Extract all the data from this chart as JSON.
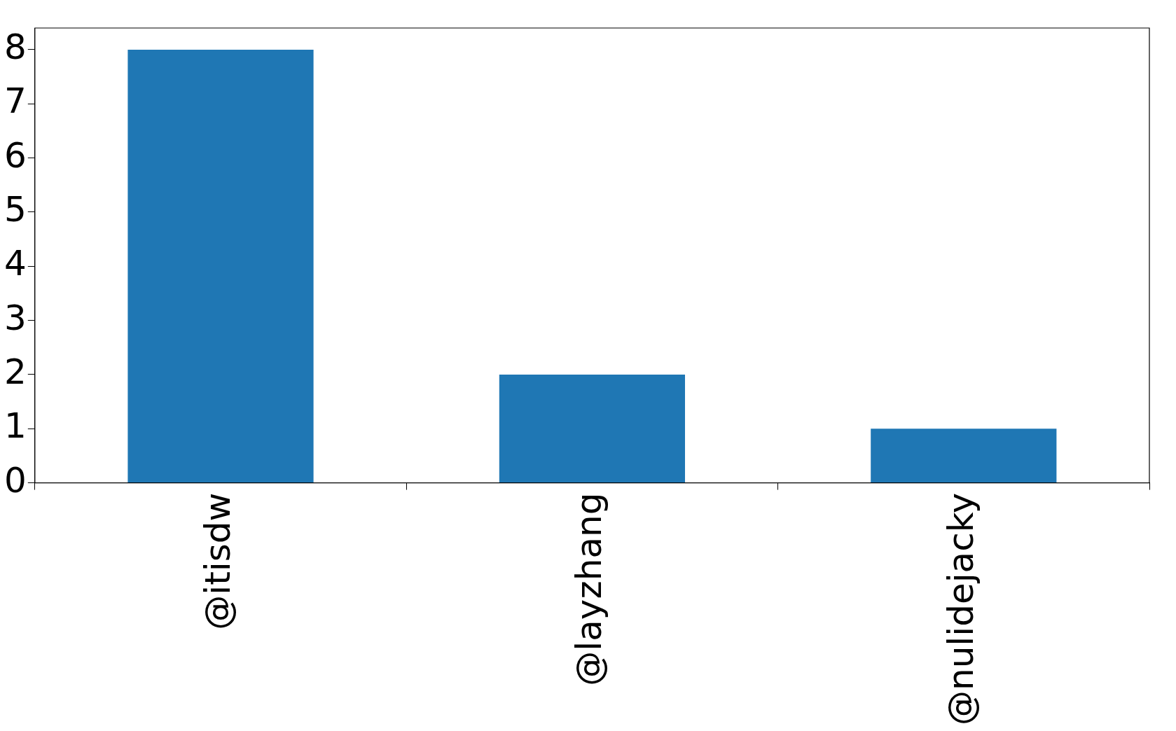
{
  "chart_data": {
    "type": "bar",
    "categories": [
      "@itisdw",
      "@layzhang",
      "@nulidejacky"
    ],
    "values": [
      8,
      2,
      1
    ],
    "color": "#1f77b4",
    "ylim": [
      0,
      8.4
    ],
    "yticks": [
      0,
      1,
      2,
      3,
      4,
      5,
      6,
      7,
      8
    ],
    "grid": false,
    "legend": false
  }
}
